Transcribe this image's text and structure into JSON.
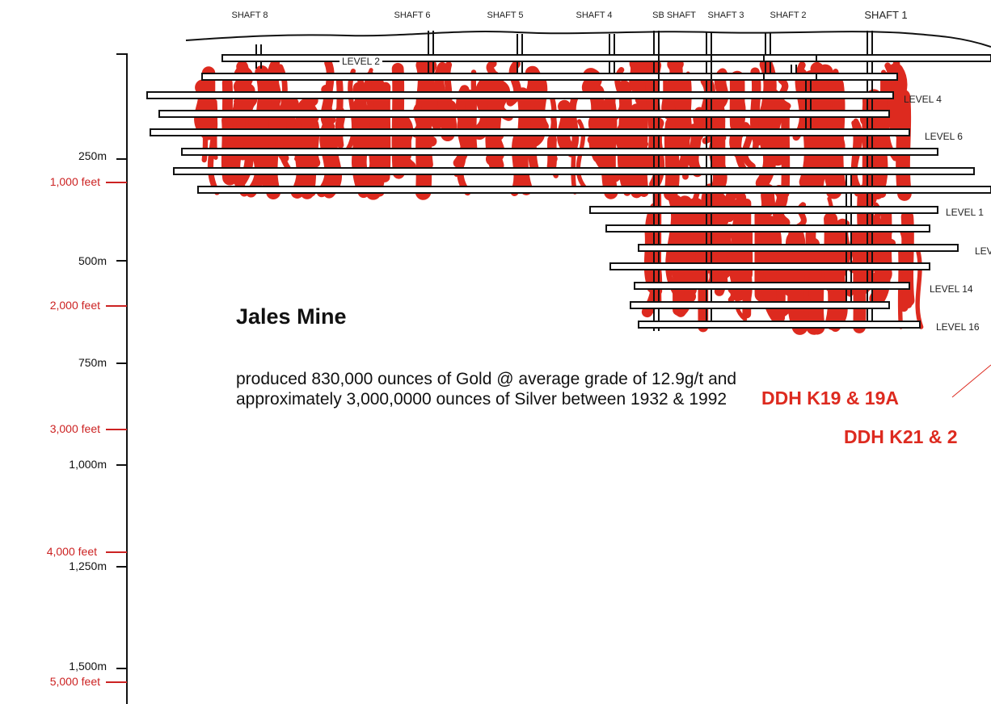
{
  "diagram": {
    "title": "Jales Mine",
    "description": "produced 830,000 ounces of Gold @ average grade of 12.9g/t and approximately 3,000,0000 ounces of Silver between 1932 & 1992",
    "colors": {
      "ore": "#dd2a1f",
      "tunnel": "#111111",
      "feet_scale": "#cc2222",
      "metre_scale": "#111111"
    },
    "shafts": [
      "SHAFT 8",
      "SHAFT 6",
      "SHAFT 5",
      "SHAFT 4",
      "SB SHAFT",
      "SHAFT 3",
      "SHAFT 2",
      "SHAFT 1"
    ],
    "levels": [
      "LEVEL 2",
      "LEVEL 4",
      "LEVEL 6",
      "LEVEL 1",
      "LEV",
      "LEVEL 14",
      "LEVEL 16"
    ],
    "depth_scale_m": [
      "250m",
      "500m",
      "750m",
      "1,000m",
      "1,250m",
      "1,500m"
    ],
    "depth_scale_ft": [
      "1,000 feet",
      "2,000 feet",
      "3,000 feet",
      "4,000 feet",
      "5,000 feet"
    ],
    "drill_holes": [
      "DDH K19 & 19A",
      "DDH K21 & 2"
    ]
  }
}
